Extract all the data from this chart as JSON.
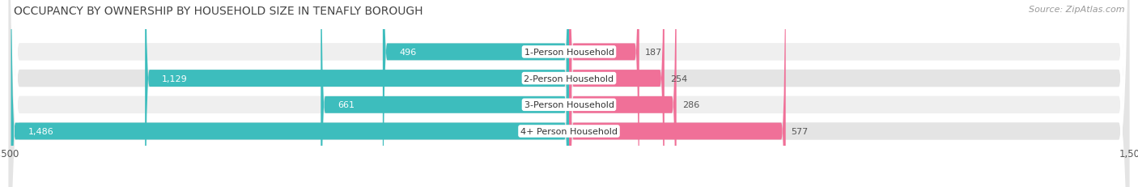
{
  "title": "OCCUPANCY BY OWNERSHIP BY HOUSEHOLD SIZE IN TENAFLY BOROUGH",
  "source": "Source: ZipAtlas.com",
  "categories": [
    "1-Person Household",
    "2-Person Household",
    "3-Person Household",
    "4+ Person Household"
  ],
  "owner_values": [
    496,
    1129,
    661,
    1486
  ],
  "renter_values": [
    187,
    254,
    286,
    577
  ],
  "owner_color": "#3DBDBD",
  "renter_color": "#F07098",
  "row_bg_odd": "#EFEFEF",
  "row_bg_even": "#E4E4E4",
  "axis_max": 1500,
  "label_color": "#555555",
  "title_color": "#444444",
  "title_fontsize": 10,
  "source_fontsize": 8,
  "tick_fontsize": 8.5,
  "bar_label_fontsize": 8,
  "category_label_fontsize": 8,
  "legend_fontsize": 8.5,
  "fig_width": 14.06,
  "fig_height": 2.32,
  "dpi": 100
}
